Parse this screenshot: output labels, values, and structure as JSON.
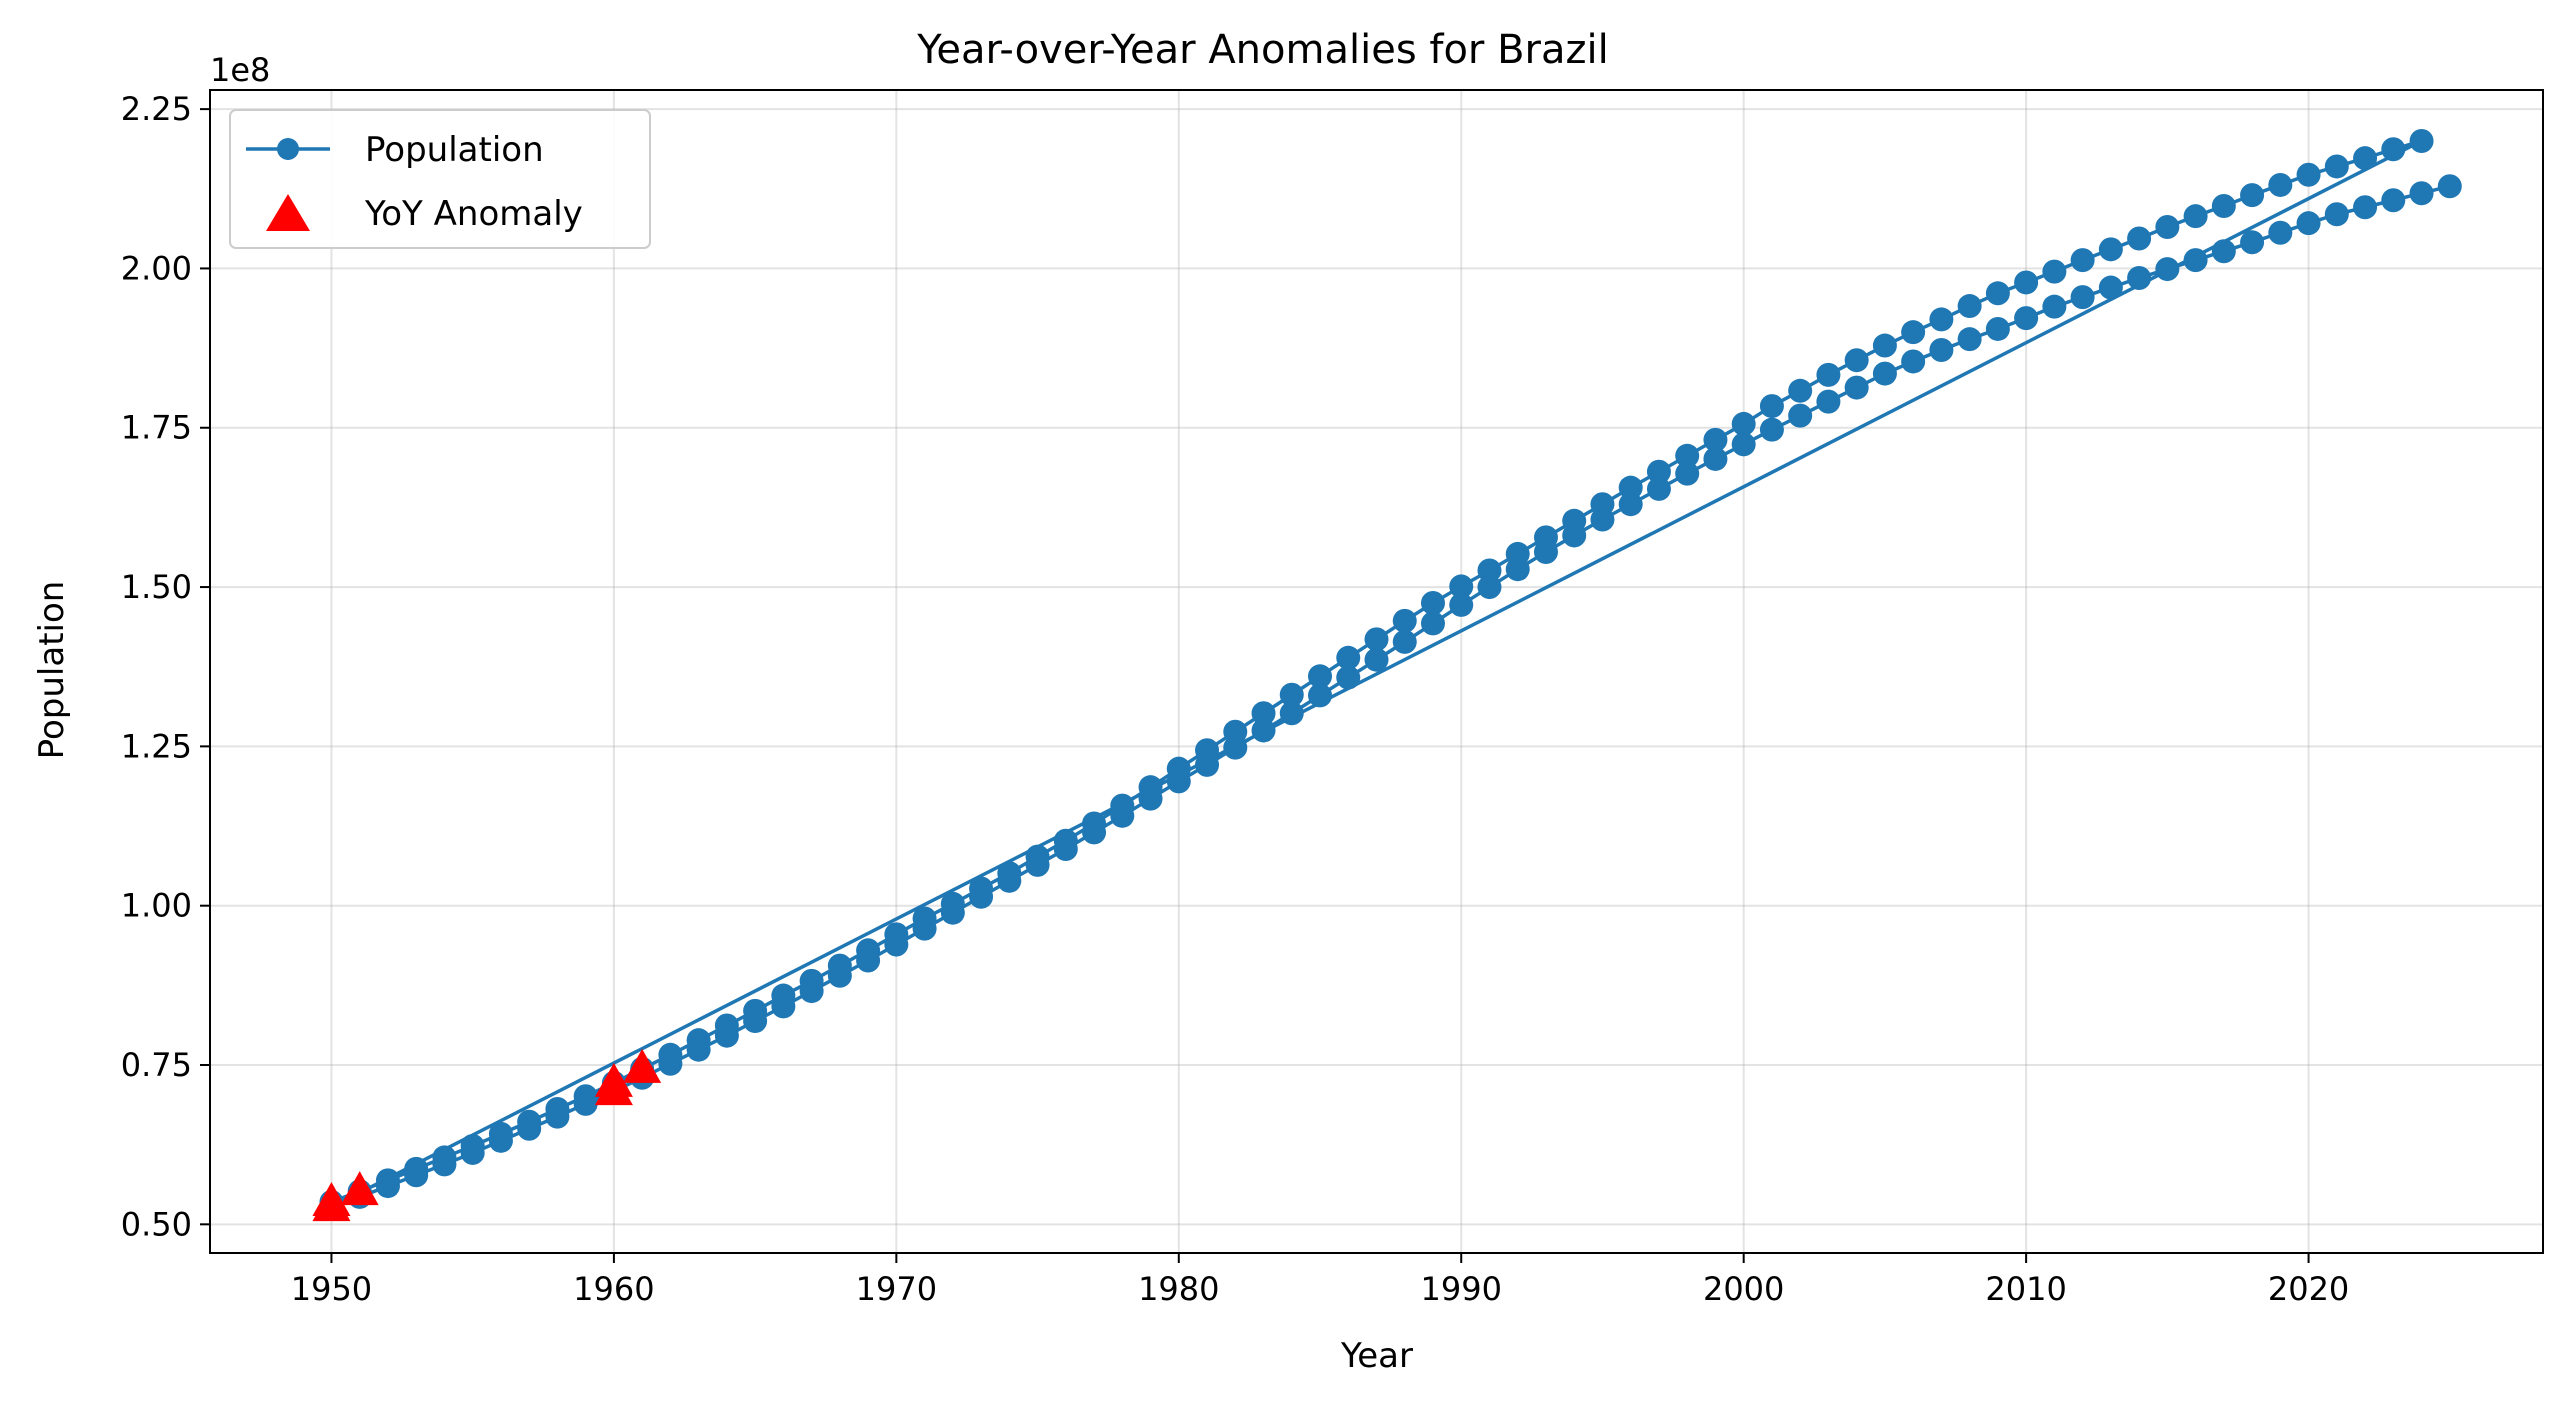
{
  "chart_data": {
    "type": "line",
    "title": "Year-over-Year Anomalies for Brazil",
    "xlabel": "Year",
    "ylabel": "Population",
    "offset_label": "1e8",
    "xlim": [
      1945.7,
      2028.3
    ],
    "ylim": [
      0.455,
      2.28
    ],
    "y_scale_multiplier": 100000000,
    "xticks": [
      1950,
      1960,
      1970,
      1980,
      1990,
      2000,
      2010,
      2020
    ],
    "yticks": [
      0.5,
      0.75,
      1.0,
      1.25,
      1.5,
      1.75,
      2.0,
      2.25
    ],
    "ytick_labels": [
      "0.50",
      "0.75",
      "1.00",
      "1.25",
      "1.50",
      "1.75",
      "2.00",
      "2.25"
    ],
    "grid": true,
    "legend": {
      "placement": "top-left",
      "entries": [
        "Population",
        "YoY Anomaly"
      ]
    },
    "colors": {
      "population": "#1f77b4",
      "anomaly": "#ff0000"
    },
    "series": [
      {
        "name": "Population",
        "style": "line-with-markers",
        "segments": [
          {
            "x": [
              1950,
              1951,
              1952,
              1953,
              1954,
              1955,
              1956,
              1957,
              1958,
              1959,
              1960,
              1961,
              1962,
              1963,
              1964,
              1965,
              1966,
              1967,
              1968,
              1969,
              1970,
              1971,
              1972,
              1973,
              1974,
              1975,
              1976,
              1977,
              1978,
              1979,
              1980,
              1981,
              1982,
              1983,
              1984,
              1985,
              1986,
              1987,
              1988,
              1989,
              1990,
              1991,
              1992,
              1993,
              1994,
              1995,
              1996,
              1997,
              1998,
              1999,
              2000,
              2001,
              2002,
              2003,
              2004,
              2005,
              2006,
              2007,
              2008,
              2009,
              2010,
              2011,
              2012,
              2013,
              2014,
              2015,
              2016,
              2017,
              2018,
              2019,
              2020,
              2021,
              2022,
              2023,
              2024
            ],
            "y": [
              0.535,
              0.552,
              0.569,
              0.587,
              0.605,
              0.623,
              0.642,
              0.661,
              0.681,
              0.701,
              0.722,
              0.744,
              0.766,
              0.789,
              0.812,
              0.835,
              0.859,
              0.882,
              0.906,
              0.93,
              0.955,
              0.98,
              1.003,
              1.027,
              1.051,
              1.077,
              1.102,
              1.129,
              1.157,
              1.186,
              1.215,
              1.244,
              1.273,
              1.302,
              1.331,
              1.36,
              1.389,
              1.418,
              1.447,
              1.475,
              1.501,
              1.526,
              1.552,
              1.578,
              1.604,
              1.63,
              1.656,
              1.681,
              1.706,
              1.731,
              1.756,
              1.784,
              1.808,
              1.833,
              1.856,
              1.879,
              1.9,
              1.92,
              1.941,
              1.961,
              1.978,
              1.995,
              2.013,
              2.03,
              2.047,
              2.065,
              2.082,
              2.098,
              2.115,
              2.131,
              2.147,
              2.16,
              2.173,
              2.187,
              2.2
            ]
          },
          {
            "x": [
              1950,
              1951,
              1952,
              1953,
              1954,
              1955,
              1956,
              1957,
              1958,
              1959,
              1960,
              1961,
              1962,
              1963,
              1964,
              1965,
              1966,
              1967,
              1968,
              1969,
              1970,
              1971,
              1972,
              1973,
              1974,
              1975,
              1976,
              1977,
              1978,
              1979,
              1980,
              1981,
              1982,
              1983,
              1984,
              1985,
              1986,
              1987,
              1988,
              1989,
              1990,
              1991,
              1992,
              1993,
              1994,
              1995,
              1996,
              1997,
              1998,
              1999,
              2000,
              2001,
              2002,
              2003,
              2004,
              2005,
              2006,
              2007,
              2008,
              2009,
              2010,
              2011,
              2012,
              2013,
              2014,
              2015,
              2016,
              2017,
              2018,
              2019,
              2020,
              2021,
              2022,
              2023
            ],
            "y": [
              0.527,
              0.543,
              0.56,
              0.577,
              0.594,
              0.612,
              0.631,
              0.65,
              0.669,
              0.689,
              0.709,
              0.73,
              0.752,
              0.774,
              0.796,
              0.819,
              0.842,
              0.866,
              0.89,
              0.914,
              0.939,
              0.964,
              0.989,
              1.014,
              1.039,
              1.064,
              1.089,
              1.115,
              1.141,
              1.168,
              1.195,
              1.221,
              1.248,
              1.275,
              1.302,
              1.33,
              1.358,
              1.386,
              1.414,
              1.443,
              1.472,
              1.5,
              1.528,
              1.555,
              1.581,
              1.606,
              1.63,
              1.654,
              1.678,
              1.701,
              1.724,
              1.747,
              1.769,
              1.791,
              1.813,
              1.835,
              1.854,
              1.872,
              1.889,
              1.905,
              1.922,
              1.94,
              1.955,
              1.97,
              1.985,
              1.999,
              2.013,
              2.027,
              2.041,
              2.056,
              2.071,
              2.085,
              2.096,
              2.107
            ]
          },
          {
            "x": [
              2024,
              2025
            ],
            "y": [
              2.118,
              2.129
            ]
          }
        ]
      },
      {
        "name": "YoY Anomaly",
        "style": "triangle-markers",
        "x": [
          1950,
          1950,
          1951,
          1960,
          1960,
          1961
        ],
        "y": [
          0.527,
          0.535,
          0.552,
          0.709,
          0.722,
          0.744
        ]
      }
    ]
  }
}
